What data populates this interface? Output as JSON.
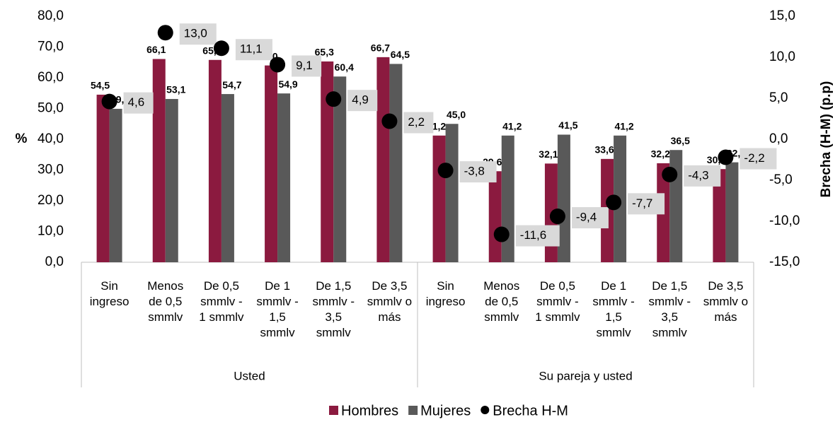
{
  "chart_data": {
    "type": "bar",
    "ylabel": "%",
    "y2label": "Brecha (H-M) (p.p)",
    "categories": [
      "Sin ingreso",
      "Menos de 0,5 smmlv",
      "De 0,5 smmlv - 1 smmlv",
      "De 1 smmlv - 1,5 smmlv",
      "De 1,5 smmlv - 3,5 smmlv",
      "De 3,5 smmlv o más",
      "Sin ingreso",
      "Menos de 0,5 smmlv",
      "De 0,5 smmlv - 1 smmlv",
      "De 1 smmlv - 1,5 smmlv",
      "De 1,5 smmlv - 3,5 smmlv",
      "De 3,5 smmlv o más"
    ],
    "groups": [
      {
        "name": "Usted",
        "size": 6
      },
      {
        "name": "Su pareja y usted",
        "size": 6
      }
    ],
    "series": [
      {
        "name": "Hombres",
        "color": "#8b1a3f",
        "type": "bar",
        "values": [
          54.5,
          66.1,
          65.8,
          64.0,
          65.3,
          66.7,
          41.2,
          29.6,
          32.1,
          33.6,
          32.2,
          30.3
        ],
        "value_labels": [
          "54,5",
          "66,1",
          "65,8",
          "64,0",
          "65,3",
          "66,7",
          "41,2",
          "29,6",
          "32,1",
          "33,6",
          "32,2",
          "30,3"
        ]
      },
      {
        "name": "Mujeres",
        "color": "#595959",
        "type": "bar",
        "values": [
          49.9,
          53.1,
          54.7,
          54.9,
          60.4,
          64.5,
          45.0,
          41.2,
          41.5,
          41.2,
          36.5,
          32.5
        ],
        "value_labels": [
          "49,9",
          "53,1",
          "54,7",
          "54,9",
          "60,4",
          "64,5",
          "45,0",
          "41,2",
          "41,5",
          "41,2",
          "36,5",
          "32,5"
        ]
      },
      {
        "name": "Brecha H-M",
        "color": "#000000",
        "type": "scatter",
        "axis": "y2",
        "values": [
          4.6,
          13.0,
          11.1,
          9.1,
          4.9,
          2.2,
          -3.8,
          -11.6,
          -9.4,
          -7.7,
          -4.3,
          -2.2
        ],
        "value_labels": [
          "4,6",
          "13,0",
          "11,1",
          "9,1",
          "4,9",
          "2,2",
          "-3,8",
          "-11,6",
          "-9,4",
          "-7,7",
          "-4,3",
          "-2,2"
        ]
      }
    ],
    "ylim": [
      0,
      80
    ],
    "yticks": [
      {
        "value": 0,
        "label": "0,0"
      },
      {
        "value": 10,
        "label": "10,0"
      },
      {
        "value": 20,
        "label": "20,0"
      },
      {
        "value": 30,
        "label": "30,0"
      },
      {
        "value": 40,
        "label": "40,0"
      },
      {
        "value": 50,
        "label": "50,0"
      },
      {
        "value": 60,
        "label": "60,0"
      },
      {
        "value": 70,
        "label": "70,0"
      },
      {
        "value": 80,
        "label": "80,0"
      }
    ],
    "y2lim": [
      -15,
      15
    ],
    "y2ticks": [
      {
        "value": -15,
        "label": "-15,0"
      },
      {
        "value": -10,
        "label": "-10,0"
      },
      {
        "value": -5,
        "label": "-5,0"
      },
      {
        "value": 0,
        "label": "0,0"
      },
      {
        "value": 5,
        "label": "5,0"
      },
      {
        "value": 10,
        "label": "10,0"
      },
      {
        "value": 15,
        "label": "15,0"
      }
    ],
    "legend": "bottom"
  }
}
